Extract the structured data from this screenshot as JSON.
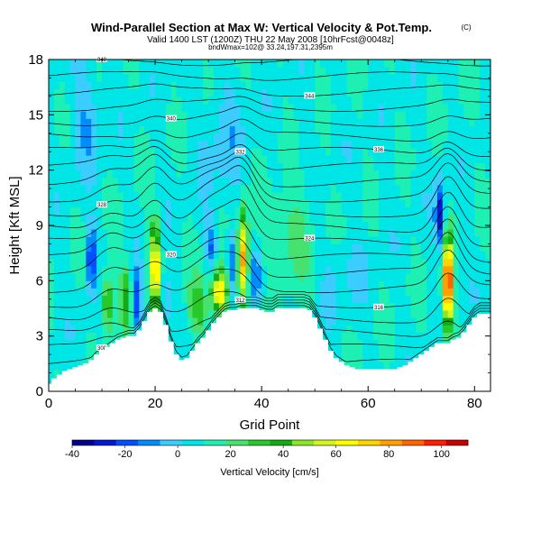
{
  "chart_data": {
    "type": "heatmap",
    "title": "Wind-Parallel Section at Max W: Vertical Velocity & Pot.Temp.",
    "title_mark": "(C)",
    "subtitle": "Valid 1400 LST (1200Z) THU 22 May 2008 [10hrFcst@0048z]",
    "subtitle2": "bndWmax=102@ 33.24,197.31,2395m",
    "xlabel": "Grid Point",
    "ylabel": "Height [Kft MSL]",
    "xlim": [
      0,
      83
    ],
    "ylim": [
      0,
      18
    ],
    "x_ticks": [
      "0",
      "20",
      "40",
      "60",
      "80"
    ],
    "y_ticks": [
      "0",
      "3",
      "6",
      "9",
      "12",
      "15",
      "18"
    ],
    "colorbar": {
      "label": "Vertical Velocity [cm/s]",
      "range": [
        -40,
        110
      ],
      "tick_labels": [
        "-40",
        "-20",
        "0",
        "20",
        "40",
        "60",
        "80",
        "100"
      ],
      "colors": [
        "#00008c",
        "#0018d0",
        "#0050ff",
        "#008cff",
        "#3ccdff",
        "#00e6e6",
        "#1ef0b4",
        "#46e16e",
        "#28c828",
        "#14aa14",
        "#8ce628",
        "#d2f51e",
        "#ffff00",
        "#ffd200",
        "#ffa000",
        "#ff6400",
        "#ff1e00",
        "#c80000"
      ]
    },
    "terrain": [
      [
        0,
        0.4
      ],
      [
        1,
        0.7
      ],
      [
        2,
        0.9
      ],
      [
        3,
        1.1
      ],
      [
        4,
        1.2
      ],
      [
        5,
        1.3
      ],
      [
        6,
        1.4
      ],
      [
        7,
        1.5
      ],
      [
        8,
        1.7
      ],
      [
        9,
        2.0
      ],
      [
        10,
        2.2
      ],
      [
        11,
        2.4
      ],
      [
        12,
        2.6
      ],
      [
        13,
        2.8
      ],
      [
        14,
        2.9
      ],
      [
        15,
        3.0
      ],
      [
        16,
        3.0
      ],
      [
        17,
        3.3
      ],
      [
        18,
        3.8
      ],
      [
        19,
        4.3
      ],
      [
        20,
        4.5
      ],
      [
        21,
        4.3
      ],
      [
        22,
        3.6
      ],
      [
        23,
        2.7
      ],
      [
        24,
        2.0
      ],
      [
        25,
        1.7
      ],
      [
        26,
        1.8
      ],
      [
        27,
        2.2
      ],
      [
        28,
        2.6
      ],
      [
        29,
        2.9
      ],
      [
        30,
        3.3
      ],
      [
        31,
        3.7
      ],
      [
        32,
        4.0
      ],
      [
        33,
        4.3
      ],
      [
        34,
        4.4
      ],
      [
        35,
        4.4
      ],
      [
        36,
        4.5
      ],
      [
        37,
        4.5
      ],
      [
        38,
        4.5
      ],
      [
        39,
        4.5
      ],
      [
        40,
        4.4
      ],
      [
        41,
        4.3
      ],
      [
        42,
        4.3
      ],
      [
        43,
        4.5
      ],
      [
        44,
        4.5
      ],
      [
        45,
        4.5
      ],
      [
        46,
        4.5
      ],
      [
        47,
        4.5
      ],
      [
        48,
        4.5
      ],
      [
        49,
        4.4
      ],
      [
        50,
        4.0
      ],
      [
        51,
        3.4
      ],
      [
        52,
        2.8
      ],
      [
        53,
        2.2
      ],
      [
        54,
        1.8
      ],
      [
        55,
        1.6
      ],
      [
        56,
        1.4
      ],
      [
        57,
        1.3
      ],
      [
        58,
        1.2
      ],
      [
        59,
        1.2
      ],
      [
        60,
        1.2
      ],
      [
        61,
        1.2
      ],
      [
        62,
        1.2
      ],
      [
        63,
        1.2
      ],
      [
        64,
        1.2
      ],
      [
        65,
        1.2
      ],
      [
        66,
        1.3
      ],
      [
        67,
        1.4
      ],
      [
        68,
        1.6
      ],
      [
        69,
        1.8
      ],
      [
        70,
        2.0
      ],
      [
        71,
        2.2
      ],
      [
        72,
        2.4
      ],
      [
        73,
        2.6
      ],
      [
        74,
        2.6
      ],
      [
        75,
        2.6
      ],
      [
        76,
        2.8
      ],
      [
        77,
        2.9
      ],
      [
        78,
        3.2
      ],
      [
        79,
        3.6
      ],
      [
        80,
        4.0
      ],
      [
        81,
        4.2
      ],
      [
        82,
        4.2
      ],
      [
        83,
        4.2
      ]
    ],
    "velocity_features": [
      {
        "x": 20.0,
        "y": 6.8,
        "peak": 70,
        "wx": 0.9,
        "wy": 2.2
      },
      {
        "x": 36.5,
        "y": 7.2,
        "peak": 75,
        "wx": 0.9,
        "wy": 2.4
      },
      {
        "x": 32.0,
        "y": 5.4,
        "peak": 72,
        "wx": 1.4,
        "wy": 1.2
      },
      {
        "x": 75.0,
        "y": 5.8,
        "peak": 102,
        "wx": 0.9,
        "wy": 2.4
      },
      {
        "x": 11.0,
        "y": 4.8,
        "peak": 35,
        "wx": 1.0,
        "wy": 1.6
      },
      {
        "x": 14.5,
        "y": 5.2,
        "peak": 30,
        "wx": 1.2,
        "wy": 1.6
      },
      {
        "x": 28.0,
        "y": 4.6,
        "peak": 25,
        "wx": 1.8,
        "wy": 1.6
      },
      {
        "x": 45.0,
        "y": 8.4,
        "peak": 15,
        "wx": 5.0,
        "wy": 2.5
      },
      {
        "x": 8.0,
        "y": 7.2,
        "peak": -35,
        "wx": 0.9,
        "wy": 1.8
      },
      {
        "x": 16.5,
        "y": 4.8,
        "peak": -28,
        "wx": 0.9,
        "wy": 1.8
      },
      {
        "x": 22.0,
        "y": 5.0,
        "peak": -18,
        "wx": 1.0,
        "wy": 1.5
      },
      {
        "x": 30.5,
        "y": 7.8,
        "peak": -22,
        "wx": 1.0,
        "wy": 1.4
      },
      {
        "x": 34.5,
        "y": 7.0,
        "peak": -25,
        "wx": 0.8,
        "wy": 1.8
      },
      {
        "x": 39.0,
        "y": 6.2,
        "peak": -20,
        "wx": 1.2,
        "wy": 1.5
      },
      {
        "x": 73.5,
        "y": 9.6,
        "peak": -40,
        "wx": 0.9,
        "wy": 1.8
      },
      {
        "x": 7.0,
        "y": 15.0,
        "peak": -14,
        "wx": 3.0,
        "wy": 3.0
      },
      {
        "x": 33.0,
        "y": 13.5,
        "peak": -10,
        "wx": 4.0,
        "wy": 4.0
      },
      {
        "x": 55.0,
        "y": 6.5,
        "peak": -8,
        "wx": 5.0,
        "wy": 2.0
      }
    ],
    "theta_contour_labels": [
      "308",
      "312",
      "316",
      "320",
      "324",
      "328",
      "332",
      "336",
      "340",
      "344",
      "348"
    ]
  }
}
